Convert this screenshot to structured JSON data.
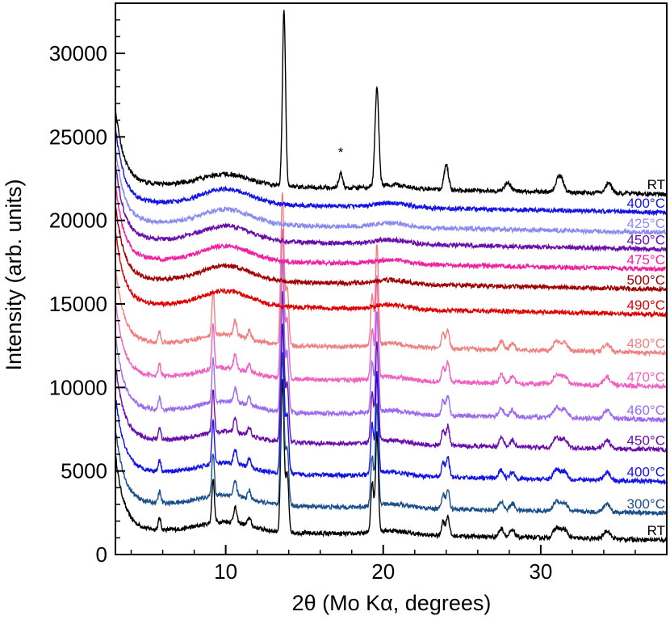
{
  "chart_data": {
    "type": "line",
    "title": "",
    "xlabel": "2θ (Mo Kα, degrees)",
    "ylabel": "Intensity (arb. units)",
    "xlim": [
      3,
      38
    ],
    "ylim": [
      0,
      33000
    ],
    "x_ticks": [
      10,
      20,
      30
    ],
    "y_ticks": [
      0,
      5000,
      10000,
      15000,
      20000,
      25000,
      30000
    ],
    "annotation": {
      "text": "*",
      "x": 17.3,
      "y": 23800
    },
    "series": [
      {
        "name": "RT",
        "color": "#000000",
        "baseline": 1500,
        "type": "crystalline",
        "order": 1
      },
      {
        "name": "300°C",
        "color": "#1a4f8c",
        "baseline": 3100,
        "type": "crystalline",
        "order": 2
      },
      {
        "name": "400°C",
        "color": "#1414e6",
        "baseline": 5000,
        "type": "crystalline",
        "order": 3
      },
      {
        "name": "450°C",
        "color": "#6a0dad",
        "baseline": 6900,
        "type": "crystalline",
        "order": 4
      },
      {
        "name": "460°C",
        "color": "#9b6bf0",
        "baseline": 8700,
        "type": "crystalline",
        "order": 5
      },
      {
        "name": "470°C",
        "color": "#f060c0",
        "baseline": 10700,
        "type": "crystalline",
        "order": 6
      },
      {
        "name": "480°C",
        "color": "#f08080",
        "baseline": 12700,
        "type": "crystalline",
        "order": 7
      },
      {
        "name": "490°C",
        "color": "#e00000",
        "baseline": 15000,
        "type": "amorphous",
        "order": 8
      },
      {
        "name": "500°C",
        "color": "#a00000",
        "baseline": 16500,
        "type": "amorphous",
        "order": 9
      },
      {
        "name": "475°C",
        "color": "#f020a0",
        "baseline": 17700,
        "type": "amorphous",
        "order": 10
      },
      {
        "name": "450°C",
        "color": "#6a0dad",
        "baseline": 18900,
        "type": "amorphous",
        "order": 11
      },
      {
        "name": "425°C",
        "color": "#8a8af0",
        "baseline": 19900,
        "type": "amorphous",
        "order": 12
      },
      {
        "name": "400°C",
        "color": "#1414e6",
        "baseline": 21100,
        "type": "amorphous",
        "order": 13
      },
      {
        "name": "RT",
        "color": "#000000",
        "baseline": 22200,
        "type": "top",
        "order": 14
      }
    ],
    "peaks_crystalline": [
      [
        5.8,
        700,
        0.08
      ],
      [
        9.2,
        2600,
        0.08
      ],
      [
        10.6,
        900,
        0.1
      ],
      [
        11.5,
        500,
        0.1
      ],
      [
        13.6,
        9000,
        0.1
      ],
      [
        13.9,
        3500,
        0.1
      ],
      [
        19.3,
        3000,
        0.09
      ],
      [
        19.6,
        6000,
        0.09
      ],
      [
        23.8,
        900,
        0.1
      ],
      [
        24.1,
        1200,
        0.1
      ],
      [
        27.5,
        500,
        0.15
      ],
      [
        28.2,
        400,
        0.15
      ],
      [
        31.0,
        600,
        0.2
      ],
      [
        31.5,
        500,
        0.2
      ],
      [
        34.2,
        500,
        0.2
      ]
    ],
    "peaks_top": [
      [
        13.7,
        10500,
        0.1
      ],
      [
        17.3,
        900,
        0.12
      ],
      [
        19.6,
        5800,
        0.12
      ],
      [
        24.0,
        1500,
        0.14
      ],
      [
        27.9,
        500,
        0.2
      ],
      [
        31.2,
        1000,
        0.22
      ],
      [
        34.3,
        600,
        0.2
      ]
    ]
  }
}
